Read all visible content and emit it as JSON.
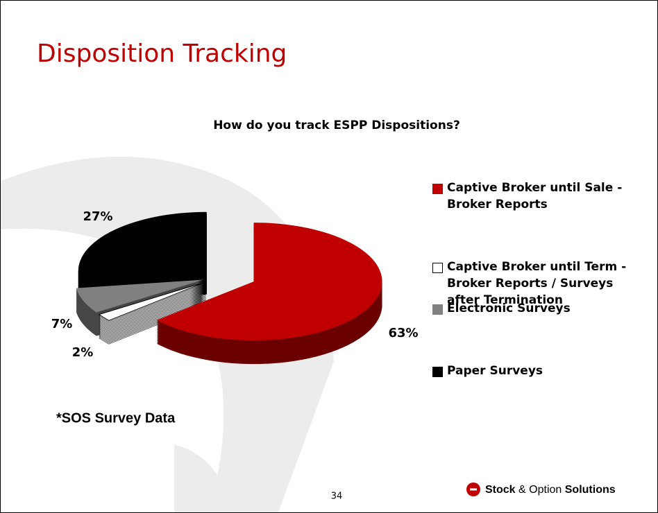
{
  "slide_title": "Disposition Tracking",
  "chart_data": {
    "type": "pie",
    "title": "How do you track ESPP Dispositions?",
    "categories": [
      "Captive Broker until Sale - Broker Reports",
      "Captive Broker until Term - Broker Reports / Surveys after Termination",
      "Electronic Surveys",
      "Paper Surveys"
    ],
    "values": [
      63,
      2,
      7,
      27
    ],
    "value_labels": [
      "63%",
      "2%",
      "7%",
      "27%"
    ],
    "colors": [
      "#c00000",
      "#ffffff",
      "#808080",
      "#000000"
    ],
    "legend": "right"
  },
  "note": "*SOS Survey Data",
  "page_number": "34",
  "logo": [
    "Stock",
    "& Option",
    "Solutions"
  ]
}
